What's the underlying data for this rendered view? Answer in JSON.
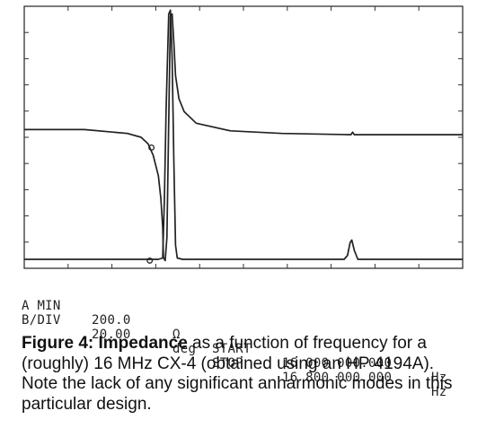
{
  "chart_data": {
    "type": "line",
    "title": "",
    "xlabel": "",
    "ylabel": "",
    "grid": false,
    "x_divisions": 10,
    "y_divisions": 10,
    "series": [
      {
        "name": "A",
        "points": [
          [
            0,
            -4.8
          ],
          [
            3.5,
            -4.8
          ],
          [
            6.0,
            -4.95
          ],
          [
            6.8,
            -5.1
          ],
          [
            7.2,
            -5.35
          ],
          [
            7.5,
            -5.8
          ],
          [
            7.8,
            -6.6
          ],
          [
            7.95,
            -7.5
          ],
          [
            8.05,
            -8.6
          ],
          [
            8.1,
            -9.8
          ],
          [
            8.2,
            -9.9
          ],
          [
            8.3,
            -9.0
          ],
          [
            8.4,
            -4.5
          ],
          [
            8.5,
            -0.4
          ],
          [
            8.6,
            -0.3
          ],
          [
            8.7,
            -1.4
          ],
          [
            8.8,
            -2.7
          ],
          [
            9.0,
            -3.6
          ],
          [
            9.3,
            -4.1
          ],
          [
            10,
            -4.55
          ],
          [
            12,
            -4.85
          ],
          [
            15,
            -4.95
          ],
          [
            19.0,
            -5.0
          ],
          [
            19.1,
            -4.9
          ],
          [
            19.2,
            -5.0
          ],
          [
            25.5,
            -5.0
          ]
        ]
      },
      {
        "name": "B",
        "points": [
          [
            0,
            -9.85
          ],
          [
            7.8,
            -9.85
          ],
          [
            8.05,
            -9.8
          ],
          [
            8.15,
            -7.5
          ],
          [
            8.25,
            -4.0
          ],
          [
            8.4,
            -0.3
          ],
          [
            8.5,
            -0.15
          ],
          [
            8.6,
            -2.0
          ],
          [
            8.7,
            -6.0
          ],
          [
            8.8,
            -9.3
          ],
          [
            8.9,
            -9.8
          ],
          [
            9.2,
            -9.85
          ],
          [
            18.6,
            -9.85
          ],
          [
            18.8,
            -9.7
          ],
          [
            18.95,
            -9.2
          ],
          [
            19.05,
            -9.1
          ],
          [
            19.2,
            -9.5
          ],
          [
            19.4,
            -9.85
          ],
          [
            25.5,
            -9.85
          ]
        ]
      }
    ],
    "markers": [
      {
        "series": "A",
        "x": 7.4,
        "y": -5.5
      },
      {
        "series": "B",
        "x": 7.3,
        "y": -9.9
      }
    ]
  },
  "readout": {
    "line1": {
      "label": "A MIN",
      "value": "200.0",
      "unit": "Ω",
      "key": "START",
      "freq": "16 000 000.000",
      "hz": "Hz"
    },
    "line2": {
      "label": "B/DIV",
      "value": "20.00",
      "unit": "deg",
      "key": "STOP",
      "freq": "16 800 000.000",
      "hz": "Hz"
    }
  },
  "caption": {
    "bold": "Figure 4: Impedance",
    "text": " as a function of frequency for a (roughly) 16 MHz CX-4 (obtained using an HP 4194A).  Note the lack of any significant anharmonic modes in this particular design."
  }
}
